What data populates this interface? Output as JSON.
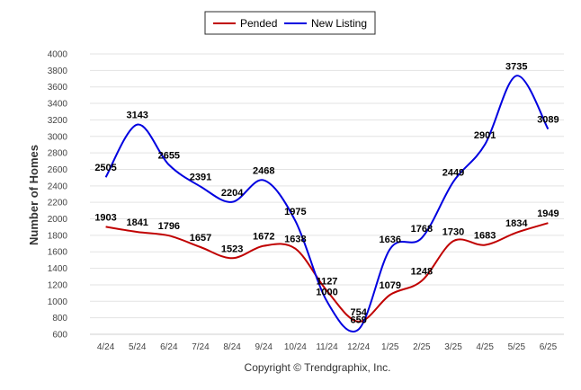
{
  "chart_data": {
    "type": "line",
    "ylabel": "Number of Homes",
    "ylim": [
      600,
      4000
    ],
    "yticks": [
      600,
      800,
      1000,
      1200,
      1400,
      1600,
      1800,
      2000,
      2200,
      2400,
      2600,
      2800,
      3000,
      3200,
      3400,
      3600,
      3800,
      4000
    ],
    "categories": [
      "4/24",
      "5/24",
      "6/24",
      "7/24",
      "8/24",
      "9/24",
      "10/24",
      "11/24",
      "12/24",
      "1/25",
      "2/25",
      "3/25",
      "4/25",
      "5/25",
      "6/25"
    ],
    "series": [
      {
        "name": "Pended",
        "color": "#c00000",
        "values": [
          1903,
          1841,
          1796,
          1657,
          1523,
          1672,
          1638,
          1127,
          754,
          1079,
          1248,
          1730,
          1683,
          1834,
          1949
        ]
      },
      {
        "name": "New Listing",
        "color": "#0000e0",
        "values": [
          2505,
          3143,
          2655,
          2391,
          2204,
          2468,
          1975,
          1000,
          659,
          1636,
          1768,
          2449,
          2901,
          3735,
          3089
        ]
      }
    ],
    "legend": "top-center",
    "grid": true
  },
  "footer": {
    "copyright": "Copyright © Trendgraphix, Inc."
  }
}
